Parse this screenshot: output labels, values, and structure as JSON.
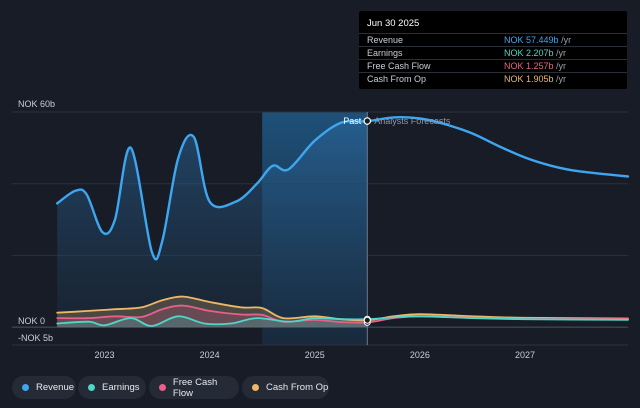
{
  "chart_data": {
    "type": "area",
    "currency_unit": "NOK",
    "y_axis_labels": {
      "top": "NOK 60b",
      "zero": "NOK 0",
      "bottom": "-NOK 5b"
    },
    "ylim": [
      -5,
      60
    ],
    "xlim": [
      2022.55,
      2027.98
    ],
    "x_tick_labels": [
      "2023",
      "2024",
      "2025",
      "2026",
      "2027"
    ],
    "x_ticks": [
      2023,
      2024,
      2025,
      2026,
      2027
    ],
    "past_label": "Past",
    "forecast_label": "Analysts Forecasts",
    "past_end": 2025.5,
    "past_shade_start": 2024.5,
    "series": [
      {
        "name": "Revenue",
        "color": "#3ea6f0",
        "x": [
          2022.55,
          2022.72,
          2022.83,
          2022.98,
          2023.1,
          2023.25,
          2023.45,
          2023.55,
          2023.7,
          2023.85,
          2024.0,
          2024.25,
          2024.45,
          2024.6,
          2024.75,
          2025.0,
          2025.25,
          2025.5,
          2025.75,
          2026.0,
          2026.25,
          2026.5,
          2026.75,
          2027.0,
          2027.25,
          2027.5,
          2027.98
        ],
        "y": [
          34.5,
          38,
          37,
          26.5,
          30,
          50,
          21,
          24,
          47,
          53,
          35,
          35,
          40,
          45,
          44,
          52,
          57,
          57.4,
          58.5,
          58.2,
          56.5,
          54,
          50.5,
          47.3,
          45,
          43.5,
          42
        ]
      },
      {
        "name": "Earnings",
        "color": "#4fd6c8",
        "x": [
          2022.55,
          2022.85,
          2023.0,
          2023.25,
          2023.45,
          2023.7,
          2023.95,
          2024.2,
          2024.45,
          2024.75,
          2025.0,
          2025.25,
          2025.5,
          2025.75,
          2026.0,
          2026.5,
          2027.0,
          2027.98
        ],
        "y": [
          1,
          1.5,
          0.5,
          2.5,
          0.3,
          3,
          1,
          1,
          2.5,
          1.5,
          2.5,
          2.2,
          2.2,
          2.7,
          3,
          2.5,
          2.2,
          2
        ]
      },
      {
        "name": "Free Cash Flow",
        "color": "#e8608a",
        "x": [
          2022.55,
          2022.85,
          2023.1,
          2023.35,
          2023.55,
          2023.75,
          2024.0,
          2024.3,
          2024.5,
          2024.7,
          2025.0,
          2025.25,
          2025.5,
          2025.75,
          2026.0,
          2026.5,
          2027.0,
          2027.98
        ],
        "y": [
          2.5,
          2.5,
          3,
          2.8,
          5,
          6,
          4.5,
          3.5,
          3.4,
          1.5,
          2,
          1.4,
          1.3,
          2.5,
          3,
          2.6,
          2.3,
          2.2
        ]
      },
      {
        "name": "Cash From Op",
        "color": "#f0b767",
        "x": [
          2022.55,
          2022.85,
          2023.1,
          2023.35,
          2023.55,
          2023.75,
          2024.0,
          2024.3,
          2024.5,
          2024.7,
          2025.0,
          2025.25,
          2025.5,
          2025.75,
          2026.0,
          2026.5,
          2027.0,
          2027.98
        ],
        "y": [
          4,
          4.5,
          5,
          5.5,
          7.5,
          8.5,
          7,
          5.5,
          5.3,
          2.5,
          3,
          2.2,
          1.9,
          3,
          3.6,
          3,
          2.6,
          2.4
        ]
      }
    ],
    "tooltip": {
      "title": "Jun 30 2025",
      "rows": [
        {
          "label": "Revenue",
          "value": "NOK 57.449b",
          "unit": "/yr",
          "color": "#3ea6f0"
        },
        {
          "label": "Earnings",
          "value": "NOK 2.207b",
          "unit": "/yr",
          "color": "#4fd6c8"
        },
        {
          "label": "Free Cash Flow",
          "value": "NOK 1.257b",
          "unit": "/yr",
          "color": "#e8608a"
        },
        {
          "label": "Cash From Op",
          "value": "NOK 1.905b",
          "unit": "/yr",
          "color": "#f0b767"
        }
      ]
    },
    "legend": [
      {
        "label": "Revenue",
        "color": "#3ea6f0"
      },
      {
        "label": "Earnings",
        "color": "#4fd6c8"
      },
      {
        "label": "Free Cash Flow",
        "color": "#e8608a"
      },
      {
        "label": "Cash From Op",
        "color": "#f0b767"
      }
    ]
  }
}
